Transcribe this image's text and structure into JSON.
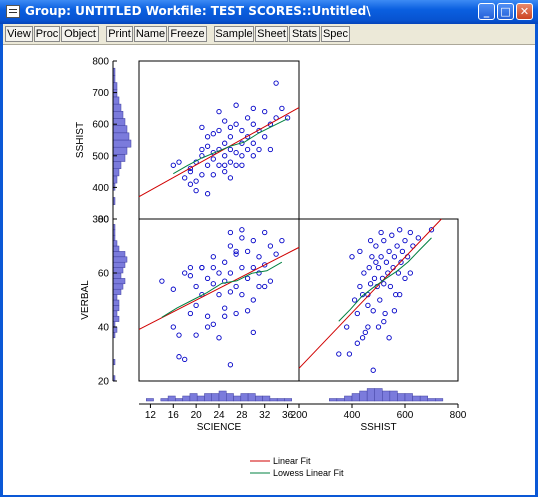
{
  "window": {
    "title": "Group: UNTITLED    Workfile: TEST SCORES::Untitled\\"
  },
  "titlebar_buttons": {
    "minimize": "_",
    "maximize": "□",
    "close": "✕"
  },
  "toolbar": [
    "View",
    "Proc",
    "Object",
    "Print",
    "Name",
    "Freeze",
    "Sample",
    "Sheet",
    "Stats",
    "Spec"
  ],
  "colors": {
    "accent": "#0a5fe0",
    "points": "#0000c8",
    "histogram": "#7b7bdc",
    "linear_fit": "#d00000",
    "lowess_fit": "#008040"
  },
  "chart_data": {
    "type": "scatter",
    "variables": [
      "SCIENCE",
      "SSHIST",
      "VERBAL"
    ],
    "panels": [
      {
        "x": "SCIENCE",
        "y": "SSHIST",
        "xlim": [
          10,
          38
        ],
        "ylim": [
          300,
          800
        ]
      },
      {
        "x": "SCIENCE",
        "y": "VERBAL",
        "xlim": [
          10,
          38
        ],
        "ylim": [
          20,
          80
        ]
      },
      {
        "x": "SSHIST",
        "y": "VERBAL",
        "xlim": [
          200,
          800
        ],
        "ylim": [
          20,
          80
        ]
      }
    ],
    "axes": {
      "SCIENCE": {
        "ticks": [
          "12",
          "16",
          "20",
          "24",
          "28",
          "32",
          "36"
        ],
        "label": "SCIENCE"
      },
      "SSHIST": {
        "ticks_x": [
          "200",
          "400",
          "600",
          "800"
        ],
        "ticks_y": [
          "300",
          "400",
          "500",
          "600",
          "700",
          "800"
        ],
        "label": "SSHIST"
      },
      "VERBAL": {
        "ticks": [
          "20",
          "40",
          "60",
          "80"
        ],
        "label": "VERBAL"
      }
    },
    "points_science_sshist": [
      [
        16,
        470
      ],
      [
        17,
        480
      ],
      [
        18,
        430
      ],
      [
        19,
        450
      ],
      [
        19,
        410
      ],
      [
        20,
        420
      ],
      [
        20,
        480
      ],
      [
        21,
        500
      ],
      [
        21,
        440
      ],
      [
        21,
        520
      ],
      [
        22,
        470
      ],
      [
        22,
        530
      ],
      [
        22,
        560
      ],
      [
        23,
        490
      ],
      [
        23,
        510
      ],
      [
        23,
        440
      ],
      [
        24,
        520
      ],
      [
        24,
        580
      ],
      [
        24,
        470
      ],
      [
        25,
        500
      ],
      [
        25,
        540
      ],
      [
        25,
        610
      ],
      [
        25,
        450
      ],
      [
        26,
        480
      ],
      [
        26,
        560
      ],
      [
        26,
        520
      ],
      [
        26,
        430
      ],
      [
        27,
        600
      ],
      [
        27,
        510
      ],
      [
        27,
        470
      ],
      [
        28,
        540
      ],
      [
        28,
        580
      ],
      [
        28,
        500
      ],
      [
        29,
        520
      ],
      [
        29,
        620
      ],
      [
        29,
        560
      ],
      [
        30,
        500
      ],
      [
        30,
        540
      ],
      [
        30,
        600
      ],
      [
        31,
        520
      ],
      [
        31,
        580
      ],
      [
        32,
        560
      ],
      [
        32,
        640
      ],
      [
        33,
        600
      ],
      [
        33,
        520
      ],
      [
        34,
        620
      ],
      [
        34,
        730
      ],
      [
        35,
        650
      ],
      [
        36,
        620
      ],
      [
        22,
        380
      ],
      [
        20,
        390
      ],
      [
        24,
        640
      ],
      [
        27,
        660
      ],
      [
        30,
        650
      ],
      [
        26,
        590
      ],
      [
        23,
        570
      ],
      [
        21,
        590
      ],
      [
        19,
        460
      ],
      [
        25,
        470
      ],
      [
        28,
        470
      ]
    ],
    "points_science_verbal": [
      [
        14,
        57
      ],
      [
        16,
        40
      ],
      [
        17,
        37
      ],
      [
        17,
        29
      ],
      [
        18,
        28
      ],
      [
        19,
        62
      ],
      [
        19,
        45
      ],
      [
        20,
        55
      ],
      [
        20,
        48
      ],
      [
        21,
        62
      ],
      [
        21,
        52
      ],
      [
        22,
        58
      ],
      [
        22,
        44
      ],
      [
        23,
        66
      ],
      [
        23,
        56
      ],
      [
        23,
        41
      ],
      [
        24,
        60
      ],
      [
        24,
        52
      ],
      [
        25,
        64
      ],
      [
        25,
        57
      ],
      [
        25,
        47
      ],
      [
        26,
        70
      ],
      [
        26,
        60
      ],
      [
        26,
        53
      ],
      [
        26,
        26
      ],
      [
        27,
        67
      ],
      [
        27,
        55
      ],
      [
        27,
        45
      ],
      [
        28,
        73
      ],
      [
        28,
        62
      ],
      [
        28,
        52
      ],
      [
        29,
        68
      ],
      [
        29,
        58
      ],
      [
        29,
        46
      ],
      [
        30,
        72
      ],
      [
        30,
        62
      ],
      [
        30,
        50
      ],
      [
        31,
        66
      ],
      [
        31,
        55
      ],
      [
        32,
        75
      ],
      [
        32,
        63
      ],
      [
        33,
        70
      ],
      [
        33,
        57
      ],
      [
        34,
        67
      ],
      [
        35,
        72
      ],
      [
        24,
        36
      ],
      [
        22,
        40
      ],
      [
        30,
        38
      ],
      [
        19,
        59
      ],
      [
        21,
        62
      ],
      [
        28,
        76
      ],
      [
        26,
        75
      ],
      [
        32,
        55
      ],
      [
        23,
        62
      ],
      [
        27,
        68
      ],
      [
        25,
        44
      ],
      [
        20,
        37
      ],
      [
        18,
        60
      ],
      [
        16,
        54
      ],
      [
        31,
        60
      ]
    ],
    "points_sshist_verbal": [
      [
        380,
        40
      ],
      [
        390,
        30
      ],
      [
        410,
        50
      ],
      [
        420,
        45
      ],
      [
        430,
        55
      ],
      [
        440,
        52
      ],
      [
        445,
        60
      ],
      [
        450,
        38
      ],
      [
        460,
        48
      ],
      [
        465,
        62
      ],
      [
        470,
        56
      ],
      [
        475,
        66
      ],
      [
        480,
        46
      ],
      [
        485,
        58
      ],
      [
        490,
        70
      ],
      [
        495,
        55
      ],
      [
        500,
        62
      ],
      [
        505,
        50
      ],
      [
        510,
        66
      ],
      [
        515,
        58
      ],
      [
        520,
        72
      ],
      [
        525,
        45
      ],
      [
        530,
        64
      ],
      [
        535,
        60
      ],
      [
        540,
        68
      ],
      [
        545,
        55
      ],
      [
        550,
        74
      ],
      [
        555,
        62
      ],
      [
        560,
        66
      ],
      [
        565,
        52
      ],
      [
        570,
        70
      ],
      [
        575,
        60
      ],
      [
        580,
        76
      ],
      [
        585,
        64
      ],
      [
        590,
        68
      ],
      [
        600,
        72
      ],
      [
        610,
        66
      ],
      [
        620,
        75
      ],
      [
        630,
        70
      ],
      [
        650,
        73
      ],
      [
        700,
        76
      ],
      [
        350,
        30
      ],
      [
        420,
        34
      ],
      [
        480,
        24
      ],
      [
        500,
        40
      ],
      [
        520,
        42
      ],
      [
        460,
        40
      ],
      [
        440,
        36
      ],
      [
        560,
        46
      ],
      [
        600,
        58
      ],
      [
        540,
        36
      ],
      [
        470,
        72
      ],
      [
        510,
        75
      ],
      [
        400,
        66
      ],
      [
        430,
        68
      ],
      [
        580,
        52
      ],
      [
        620,
        60
      ],
      [
        490,
        64
      ],
      [
        460,
        52
      ],
      [
        520,
        56
      ]
    ],
    "histogram_sshist_y": [
      0,
      0,
      1,
      0,
      1,
      2,
      3,
      4,
      6,
      7,
      9,
      8,
      7,
      6,
      5,
      4,
      3,
      2,
      2,
      1,
      1,
      0
    ],
    "histogram_verbal_y": [
      1,
      0,
      0,
      1,
      0,
      0,
      0,
      0,
      1,
      2,
      1,
      3,
      2,
      3,
      3,
      2,
      4,
      5,
      6,
      4,
      5,
      6,
      7,
      6,
      3,
      2,
      1,
      1,
      1,
      0
    ],
    "histogram_science_x": [
      0,
      1,
      0,
      1,
      2,
      1,
      2,
      3,
      2,
      3,
      3,
      4,
      3,
      2,
      3,
      3,
      2,
      2,
      1,
      1,
      1,
      0
    ],
    "histogram_sshist_x": [
      0,
      0,
      0,
      0,
      1,
      1,
      2,
      3,
      4,
      5,
      5,
      4,
      4,
      3,
      3,
      2,
      2,
      1,
      1,
      0,
      0
    ],
    "legend": [
      "Linear Fit",
      "Lowess Linear Fit"
    ]
  }
}
